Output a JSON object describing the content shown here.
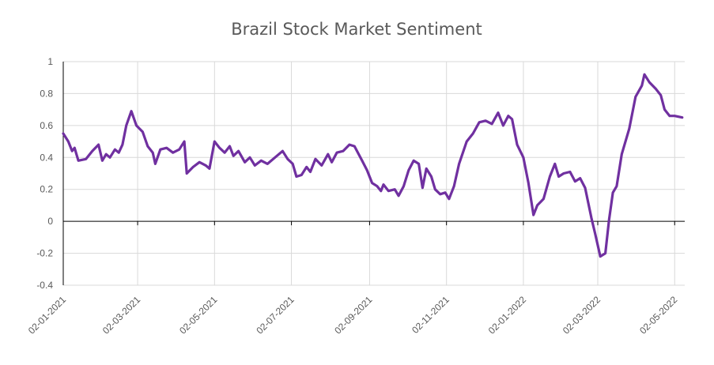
{
  "chart_data": {
    "type": "line",
    "title": "Brazil Stock Market Sentiment",
    "xlabel": "",
    "ylabel": "",
    "ylim": [
      -0.4,
      1
    ],
    "y_ticks": [
      {
        "value": 1,
        "label": "1"
      },
      {
        "value": 0.8,
        "label": "0.8"
      },
      {
        "value": 0.6,
        "label": "0.6"
      },
      {
        "value": 0.4,
        "label": "0.4"
      },
      {
        "value": 0.2,
        "label": "0.2"
      },
      {
        "value": 0,
        "label": "0"
      },
      {
        "value": -0.2,
        "label": "-0.2"
      },
      {
        "value": -0.4,
        "label": "-0.4"
      }
    ],
    "x_range": [
      "2021-01-02",
      "2022-05-10"
    ],
    "x_ticks": [
      {
        "date": "2021-01-02",
        "label": "02-01-2021"
      },
      {
        "date": "2021-03-02",
        "label": "02-03-2021"
      },
      {
        "date": "2021-05-02",
        "label": "02-05-2021"
      },
      {
        "date": "2021-07-02",
        "label": "02-07-2021"
      },
      {
        "date": "2021-09-02",
        "label": "02-09-2021"
      },
      {
        "date": "2021-11-02",
        "label": "02-11-2021"
      },
      {
        "date": "2022-01-02",
        "label": "02-01-2022"
      },
      {
        "date": "2022-03-02",
        "label": "02-03-2022"
      },
      {
        "date": "2022-05-02",
        "label": "02-05-2022"
      }
    ],
    "grid": true,
    "legend": "none",
    "colors": {
      "line": "#7030A0",
      "grid": "#D9D9D9",
      "axis": "#000000",
      "text": "#595959"
    },
    "series": [
      {
        "points": [
          [
            "2021-01-02",
            0.55
          ],
          [
            "2021-01-06",
            0.5
          ],
          [
            "2021-01-09",
            0.44
          ],
          [
            "2021-01-11",
            0.46
          ],
          [
            "2021-01-14",
            0.38
          ],
          [
            "2021-01-20",
            0.39
          ],
          [
            "2021-01-25",
            0.44
          ],
          [
            "2021-01-30",
            0.48
          ],
          [
            "2021-02-02",
            0.38
          ],
          [
            "2021-02-05",
            0.42
          ],
          [
            "2021-02-08",
            0.4
          ],
          [
            "2021-02-12",
            0.45
          ],
          [
            "2021-02-15",
            0.43
          ],
          [
            "2021-02-18",
            0.48
          ],
          [
            "2021-02-21",
            0.6
          ],
          [
            "2021-02-25",
            0.69
          ],
          [
            "2021-03-01",
            0.6
          ],
          [
            "2021-03-06",
            0.56
          ],
          [
            "2021-03-10",
            0.47
          ],
          [
            "2021-03-14",
            0.43
          ],
          [
            "2021-03-16",
            0.36
          ],
          [
            "2021-03-20",
            0.45
          ],
          [
            "2021-03-25",
            0.46
          ],
          [
            "2021-03-30",
            0.43
          ],
          [
            "2021-04-04",
            0.45
          ],
          [
            "2021-04-08",
            0.5
          ],
          [
            "2021-04-10",
            0.3
          ],
          [
            "2021-04-15",
            0.34
          ],
          [
            "2021-04-20",
            0.37
          ],
          [
            "2021-04-25",
            0.35
          ],
          [
            "2021-04-28",
            0.33
          ],
          [
            "2021-05-02",
            0.5
          ],
          [
            "2021-05-06",
            0.46
          ],
          [
            "2021-05-10",
            0.43
          ],
          [
            "2021-05-14",
            0.47
          ],
          [
            "2021-05-17",
            0.41
          ],
          [
            "2021-05-21",
            0.44
          ],
          [
            "2021-05-26",
            0.37
          ],
          [
            "2021-05-30",
            0.4
          ],
          [
            "2021-06-03",
            0.35
          ],
          [
            "2021-06-08",
            0.38
          ],
          [
            "2021-06-13",
            0.36
          ],
          [
            "2021-06-19",
            0.4
          ],
          [
            "2021-06-25",
            0.44
          ],
          [
            "2021-06-29",
            0.39
          ],
          [
            "2021-07-03",
            0.36
          ],
          [
            "2021-07-06",
            0.28
          ],
          [
            "2021-07-10",
            0.29
          ],
          [
            "2021-07-14",
            0.34
          ],
          [
            "2021-07-17",
            0.31
          ],
          [
            "2021-07-21",
            0.39
          ],
          [
            "2021-07-26",
            0.35
          ],
          [
            "2021-07-31",
            0.42
          ],
          [
            "2021-08-03",
            0.37
          ],
          [
            "2021-08-07",
            0.43
          ],
          [
            "2021-08-12",
            0.44
          ],
          [
            "2021-08-17",
            0.48
          ],
          [
            "2021-08-21",
            0.47
          ],
          [
            "2021-08-27",
            0.38
          ],
          [
            "2021-08-31",
            0.32
          ],
          [
            "2021-09-04",
            0.24
          ],
          [
            "2021-09-08",
            0.22
          ],
          [
            "2021-09-11",
            0.19
          ],
          [
            "2021-09-13",
            0.23
          ],
          [
            "2021-09-17",
            0.19
          ],
          [
            "2021-09-22",
            0.2
          ],
          [
            "2021-09-25",
            0.16
          ],
          [
            "2021-09-29",
            0.22
          ],
          [
            "2021-10-03",
            0.32
          ],
          [
            "2021-10-07",
            0.38
          ],
          [
            "2021-10-11",
            0.36
          ],
          [
            "2021-10-14",
            0.21
          ],
          [
            "2021-10-17",
            0.33
          ],
          [
            "2021-10-21",
            0.28
          ],
          [
            "2021-10-24",
            0.2
          ],
          [
            "2021-10-28",
            0.17
          ],
          [
            "2021-11-01",
            0.18
          ],
          [
            "2021-11-04",
            0.14
          ],
          [
            "2021-11-08",
            0.22
          ],
          [
            "2021-11-12",
            0.36
          ],
          [
            "2021-11-18",
            0.5
          ],
          [
            "2021-11-23",
            0.55
          ],
          [
            "2021-11-28",
            0.62
          ],
          [
            "2021-12-03",
            0.63
          ],
          [
            "2021-12-08",
            0.61
          ],
          [
            "2021-12-13",
            0.68
          ],
          [
            "2021-12-17",
            0.6
          ],
          [
            "2021-12-21",
            0.66
          ],
          [
            "2021-12-24",
            0.64
          ],
          [
            "2021-12-28",
            0.48
          ],
          [
            "2022-01-02",
            0.4
          ],
          [
            "2022-01-06",
            0.24
          ],
          [
            "2022-01-10",
            0.04
          ],
          [
            "2022-01-13",
            0.1
          ],
          [
            "2022-01-18",
            0.14
          ],
          [
            "2022-01-23",
            0.28
          ],
          [
            "2022-01-27",
            0.36
          ],
          [
            "2022-01-30",
            0.28
          ],
          [
            "2022-02-03",
            0.3
          ],
          [
            "2022-02-08",
            0.31
          ],
          [
            "2022-02-12",
            0.25
          ],
          [
            "2022-02-16",
            0.27
          ],
          [
            "2022-02-20",
            0.21
          ],
          [
            "2022-02-25",
            0.02
          ],
          [
            "2022-02-28",
            -0.08
          ],
          [
            "2022-03-04",
            -0.22
          ],
          [
            "2022-03-08",
            -0.2
          ],
          [
            "2022-03-11",
            0.01
          ],
          [
            "2022-03-14",
            0.18
          ],
          [
            "2022-03-17",
            0.22
          ],
          [
            "2022-03-21",
            0.42
          ],
          [
            "2022-03-27",
            0.58
          ],
          [
            "2022-04-01",
            0.78
          ],
          [
            "2022-04-06",
            0.85
          ],
          [
            "2022-04-08",
            0.92
          ],
          [
            "2022-04-12",
            0.87
          ],
          [
            "2022-04-17",
            0.83
          ],
          [
            "2022-04-21",
            0.79
          ],
          [
            "2022-04-24",
            0.7
          ],
          [
            "2022-04-28",
            0.66
          ],
          [
            "2022-05-02",
            0.66
          ],
          [
            "2022-05-08",
            0.65
          ]
        ]
      }
    ]
  }
}
